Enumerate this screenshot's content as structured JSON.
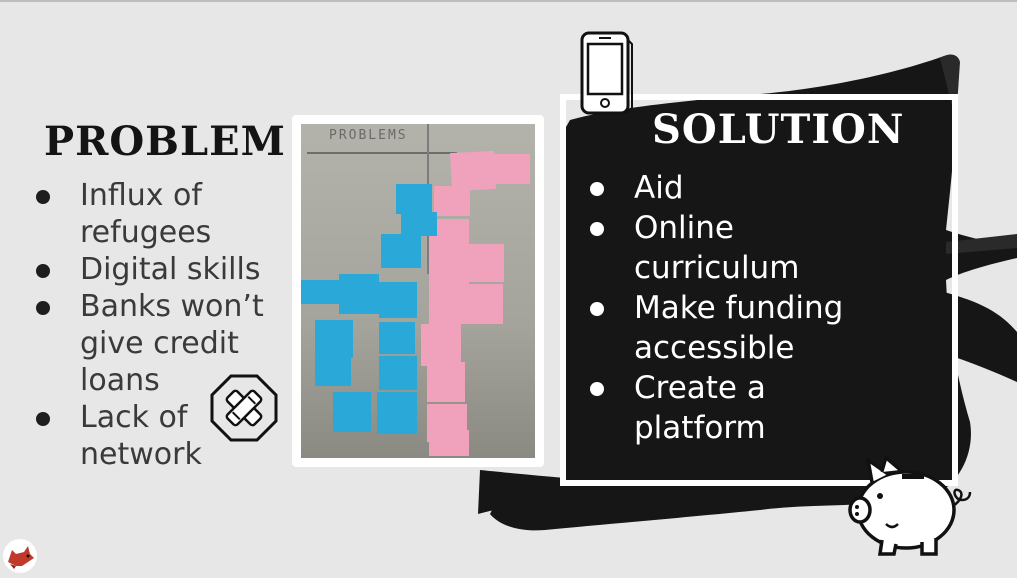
{
  "problem": {
    "title": "PROBLEM",
    "items": [
      "Influx of refugees",
      "Digital skills",
      "Banks won’t give credit loans",
      "Lack of network"
    ]
  },
  "solution": {
    "title": "SOLUTION",
    "items": [
      "Aid",
      "Online curriculum",
      "Make funding accessible",
      "Create a platform"
    ]
  },
  "photo": {
    "header_text": "PROBLEMS"
  },
  "icons": {
    "phone": "phone-icon",
    "bandage": "bandage-icon",
    "piggy_bank": "piggy-bank-icon",
    "fox": "fox-logo-icon"
  },
  "colors": {
    "background": "#e7e7e7",
    "brush": "#161616",
    "sticky_blue": "#2aa9d9",
    "sticky_pink": "#f0a2bd"
  }
}
